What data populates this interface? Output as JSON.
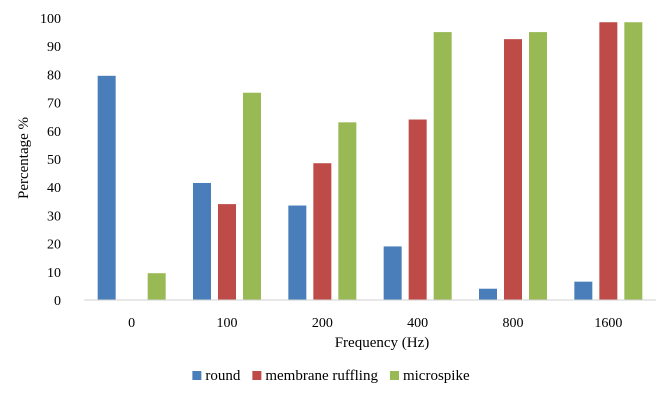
{
  "chart_data": {
    "type": "bar",
    "title": "",
    "xlabel": "Frequency  (Hz)",
    "ylabel": "Percentage  %",
    "ylim": [
      0,
      100
    ],
    "yticks": [
      0,
      10,
      20,
      30,
      40,
      50,
      60,
      70,
      80,
      90,
      100
    ],
    "grid": false,
    "legend_position": "bottom",
    "categories": [
      "0",
      "100",
      "200",
      "400",
      "800",
      "1600"
    ],
    "series": [
      {
        "name": "round",
        "color": "#4A7EBB",
        "values": [
          79.5,
          41.5,
          33.5,
          19,
          4,
          6.5
        ]
      },
      {
        "name": "membrane ruffling",
        "color": "#BE4B48",
        "values": [
          0,
          34,
          48.5,
          64,
          92.5,
          98.5
        ]
      },
      {
        "name": "microspike",
        "color": "#98B954",
        "values": [
          9.5,
          73.5,
          63,
          95,
          95,
          98.5
        ]
      }
    ]
  }
}
